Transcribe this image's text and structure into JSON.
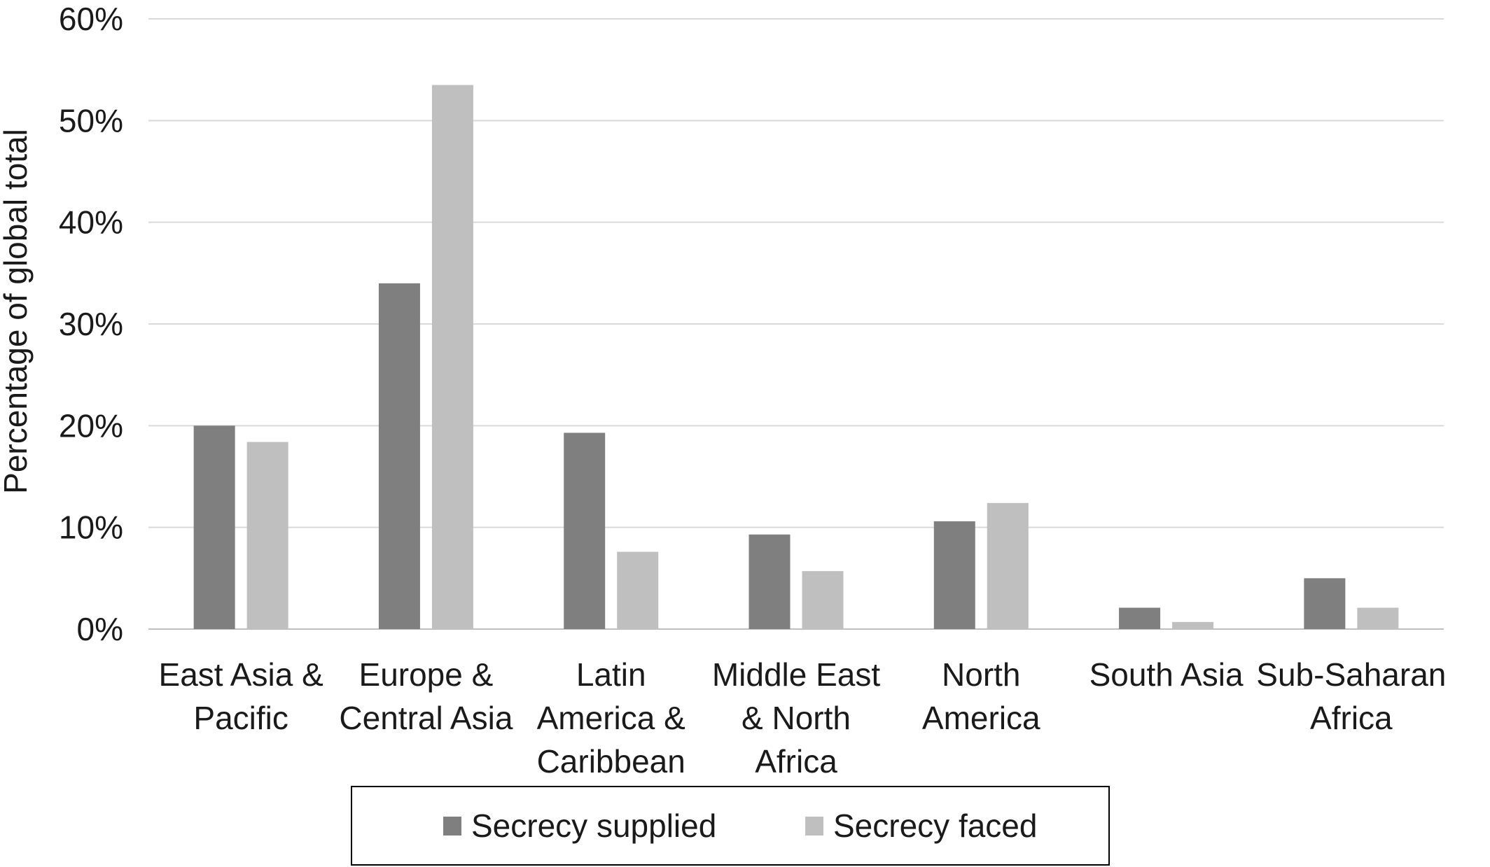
{
  "chart_data": {
    "type": "bar",
    "ylabel": "Percentage of global total",
    "ylim": [
      0,
      60
    ],
    "yticks": [
      "0%",
      "10%",
      "20%",
      "30%",
      "40%",
      "50%",
      "60%"
    ],
    "grid": true,
    "legend_position": "bottom",
    "categories": [
      [
        "East Asia &",
        "Pacific"
      ],
      [
        "Europe &",
        "Central Asia"
      ],
      [
        "Latin",
        "America &",
        "Caribbean"
      ],
      [
        "Middle East",
        "& North",
        "Africa"
      ],
      [
        "North",
        "America"
      ],
      [
        "South Asia"
      ],
      [
        "Sub-Saharan",
        "Africa"
      ]
    ],
    "series": [
      {
        "name": "Secrecy supplied",
        "color": "#7f7f7f",
        "values": [
          20.0,
          34.0,
          19.3,
          9.3,
          10.6,
          2.1,
          5.0
        ]
      },
      {
        "name": "Secrecy faced",
        "color": "#bfbfbf",
        "values": [
          18.4,
          53.5,
          7.6,
          5.7,
          12.4,
          0.7,
          2.1
        ]
      }
    ],
    "gridline_color": "#d9d9d9"
  }
}
